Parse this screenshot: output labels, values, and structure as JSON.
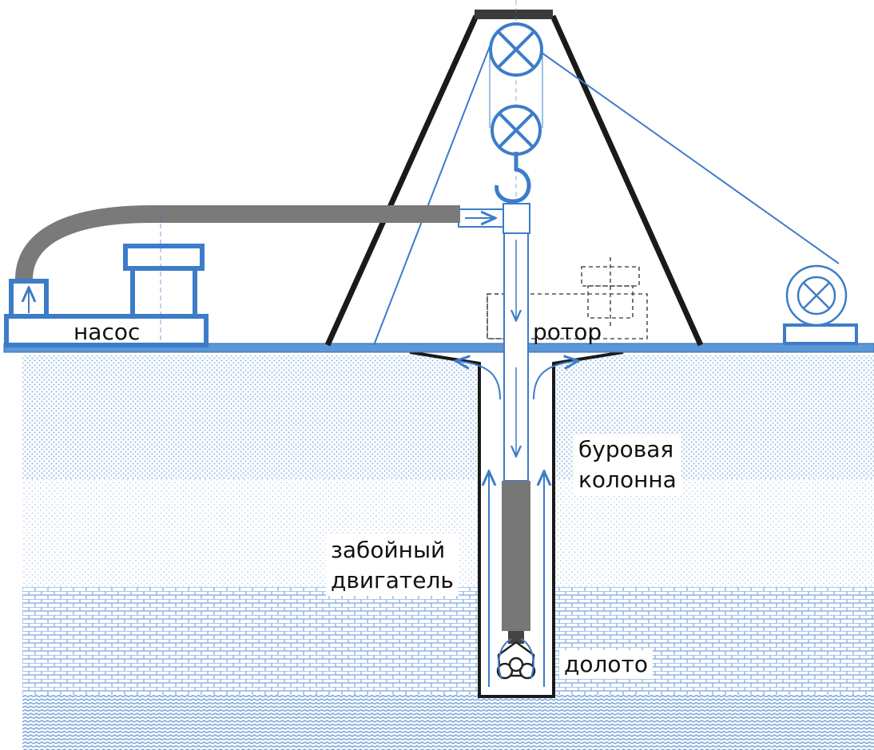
{
  "labels": {
    "pump": "насос",
    "rotor": "ротор",
    "drill_string_line1": "буровая",
    "drill_string_line2": "колонна",
    "downhole_motor_line1": "забойный",
    "downhole_motor_line2": "двигатель",
    "bit": "долото"
  },
  "colors": {
    "accent_blue": "#3d7cc9",
    "structure_black": "#1a1a1a",
    "hose_gray": "#7a7a7a",
    "ground_dots": "#a9c6e8"
  }
}
